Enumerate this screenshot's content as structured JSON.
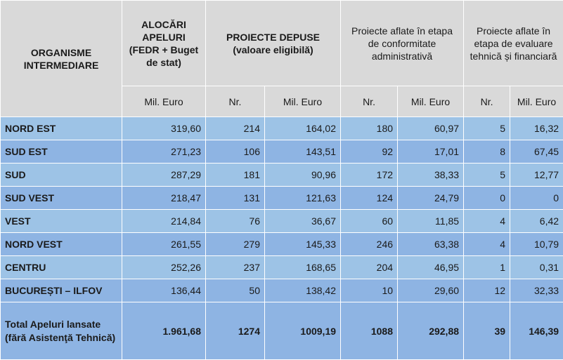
{
  "header": {
    "organisme": "ORGANISME INTERMEDIARE",
    "alocari": "ALOCĂRI APELURI (FEDR + Buget de stat)",
    "proiecte_depuse": "PROIECTE DEPUSE (valoare eligibilă)",
    "conformitate": "Proiecte aflate în etapa de conformitate administrativă",
    "evaluare": "Proiecte aflate în etapa de evaluare tehnică și financiară",
    "mil_euro": "Mil. Euro",
    "nr": "Nr."
  },
  "rows": [
    {
      "name": "NORD EST",
      "alocari": "319,60",
      "dep_nr": "214",
      "dep_mil": "164,02",
      "conf_nr": "180",
      "conf_mil": "60,97",
      "eval_nr": "5",
      "eval_mil": "16,32"
    },
    {
      "name": "SUD EST",
      "alocari": "271,23",
      "dep_nr": "106",
      "dep_mil": "143,51",
      "conf_nr": "92",
      "conf_mil": "17,01",
      "eval_nr": "8",
      "eval_mil": "67,45"
    },
    {
      "name": "SUD",
      "alocari": "287,29",
      "dep_nr": "181",
      "dep_mil": "90,96",
      "conf_nr": "172",
      "conf_mil": "38,33",
      "eval_nr": "5",
      "eval_mil": "12,77"
    },
    {
      "name": "SUD VEST",
      "alocari": "218,47",
      "dep_nr": "131",
      "dep_mil": "121,63",
      "conf_nr": "124",
      "conf_mil": "24,79",
      "eval_nr": "0",
      "eval_mil": "0"
    },
    {
      "name": "VEST",
      "alocari": "214,84",
      "dep_nr": "76",
      "dep_mil": "36,67",
      "conf_nr": "60",
      "conf_mil": "11,85",
      "eval_nr": "4",
      "eval_mil": "6,42"
    },
    {
      "name": "NORD VEST",
      "alocari": "261,55",
      "dep_nr": "279",
      "dep_mil": "145,33",
      "conf_nr": "246",
      "conf_mil": "63,38",
      "eval_nr": "4",
      "eval_mil": "10,79"
    },
    {
      "name": "CENTRU",
      "alocari": "252,26",
      "dep_nr": "237",
      "dep_mil": "168,65",
      "conf_nr": "204",
      "conf_mil": "46,95",
      "eval_nr": "1",
      "eval_mil": "0,31"
    },
    {
      "name": "BUCUREȘTI – ILFOV",
      "alocari": "136,44",
      "dep_nr": "50",
      "dep_mil": "138,42",
      "conf_nr": "10",
      "conf_mil": "29,60",
      "eval_nr": "12",
      "eval_mil": "32,33"
    }
  ],
  "total": {
    "name": "Total Apeluri lansate (fără Asistenţă Tehnică)",
    "alocari": "1.961,68",
    "dep_nr": "1274",
    "dep_mil": "1009,19",
    "conf_nr": "1088",
    "conf_mil": "292,88",
    "eval_nr": "39",
    "eval_mil": "146,39"
  }
}
